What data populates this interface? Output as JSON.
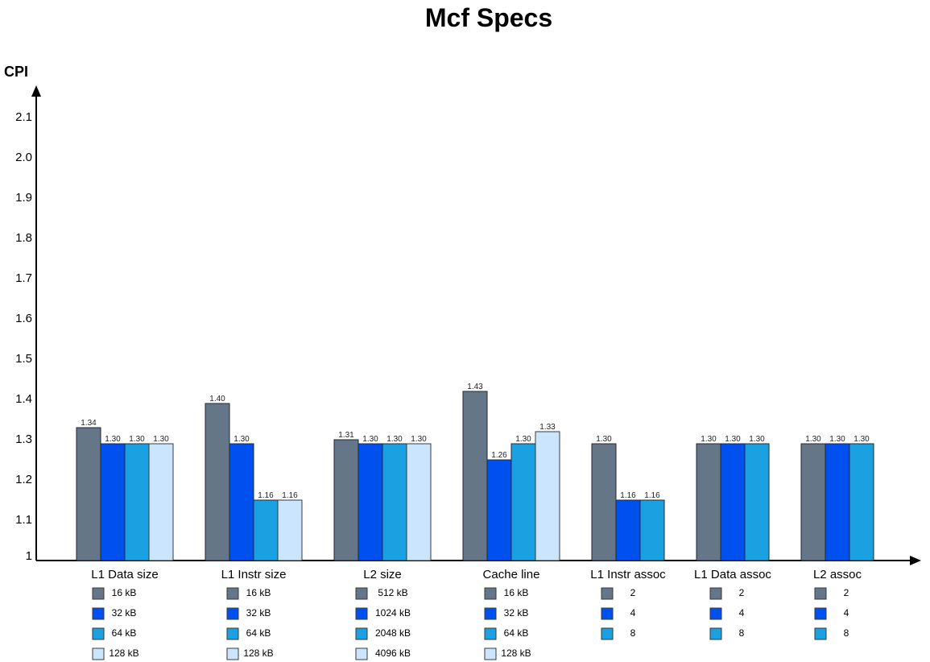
{
  "chart_data": {
    "type": "bar",
    "title": "Mcf Specs",
    "ylabel": "CPI",
    "xlabel": "",
    "ylim": [
      1.0,
      2.1
    ],
    "y_ticks": [
      "1",
      "1.1",
      "1.2",
      "1.3",
      "1.4",
      "1.5",
      "1.6",
      "1.7",
      "1.8",
      "1.9",
      "2.0",
      "2.1"
    ],
    "grid": false,
    "colors": [
      "#647687",
      "#0050EF",
      "#1BA1E2",
      "#CCE5FF"
    ],
    "groups": [
      {
        "name": "L1 Data size",
        "bars": [
          {
            "value": 1.33,
            "label": "1.34",
            "legend": "16 kB"
          },
          {
            "value": 1.29,
            "label": "1.30",
            "legend": "32 kB"
          },
          {
            "value": 1.29,
            "label": "1.30",
            "legend": "64 kB"
          },
          {
            "value": 1.29,
            "label": "1.30",
            "legend": "128 kB"
          }
        ]
      },
      {
        "name": "L1 Instr size",
        "bars": [
          {
            "value": 1.39,
            "label": "1.40",
            "legend": "16 kB"
          },
          {
            "value": 1.29,
            "label": "1.30",
            "legend": "32 kB"
          },
          {
            "value": 1.15,
            "label": "1.16",
            "legend": "64 kB"
          },
          {
            "value": 1.15,
            "label": "1.16",
            "legend": "128 kB"
          }
        ]
      },
      {
        "name": "L2 size",
        "bars": [
          {
            "value": 1.3,
            "label": "1.31",
            "legend": "512 kB"
          },
          {
            "value": 1.29,
            "label": "1.30",
            "legend": "1024 kB"
          },
          {
            "value": 1.29,
            "label": "1.30",
            "legend": "2048 kB"
          },
          {
            "value": 1.29,
            "label": "1.30",
            "legend": "4096 kB"
          }
        ]
      },
      {
        "name": "Cache line",
        "bars": [
          {
            "value": 1.42,
            "label": "1.43",
            "legend": "16 kB"
          },
          {
            "value": 1.25,
            "label": "1.26",
            "legend": "32 kB"
          },
          {
            "value": 1.29,
            "label": "1.30",
            "legend": "64 kB"
          },
          {
            "value": 1.32,
            "label": "1.33",
            "legend": "128 kB"
          }
        ]
      },
      {
        "name": "L1 Instr assoc",
        "bars": [
          {
            "value": 1.29,
            "label": "1.30",
            "legend": "2"
          },
          {
            "value": 1.15,
            "label": "1.16",
            "legend": "4"
          },
          {
            "value": 1.15,
            "label": "1.16",
            "legend": "8"
          }
        ]
      },
      {
        "name": "L1 Data assoc",
        "bars": [
          {
            "value": 1.29,
            "label": "1.30",
            "legend": "2"
          },
          {
            "value": 1.29,
            "label": "1.30",
            "legend": "4"
          },
          {
            "value": 1.29,
            "label": "1.30",
            "legend": "8"
          }
        ]
      },
      {
        "name": "L2 assoc",
        "bars": [
          {
            "value": 1.29,
            "label": "1.30",
            "legend": "2"
          },
          {
            "value": 1.29,
            "label": "1.30",
            "legend": "4"
          },
          {
            "value": 1.29,
            "label": "1.30",
            "legend": "8"
          }
        ]
      }
    ]
  }
}
